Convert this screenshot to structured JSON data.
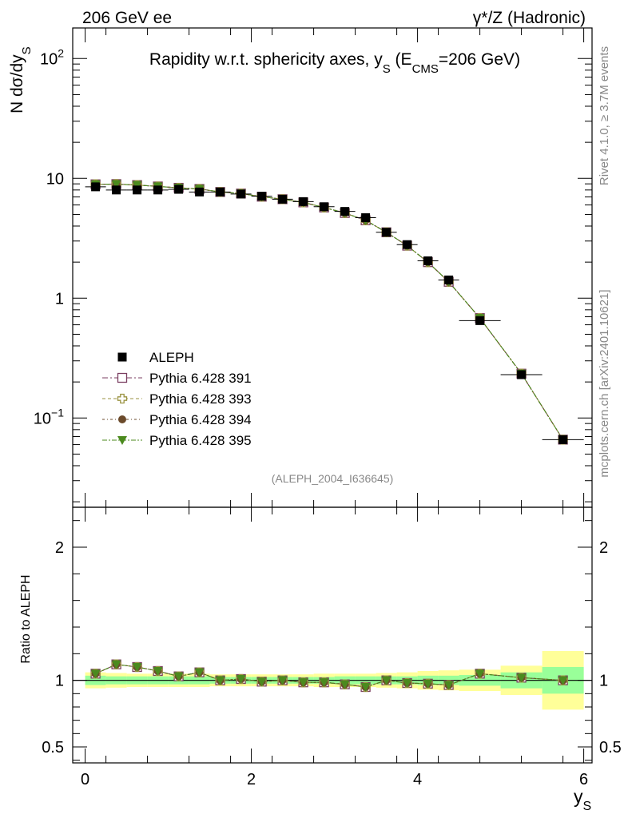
{
  "header": {
    "left": "206 GeV ee",
    "right": "γ*/Z (Hadronic)"
  },
  "side_labels": {
    "rivet": "Rivet 4.1.0, ≥ 3.7M events",
    "mcplots": "mcplots.cern.ch [arXiv:2401.10621]"
  },
  "chart_data": {
    "type": "scatter",
    "title": "Rapidity w.r.t. sphericity axes, y",
    "title_sub": "S",
    "title_tail": " (E",
    "title_sub2": "CMS",
    "title_end": "=206 GeV)",
    "ylabel_main_prefix": "N  dσ/dy",
    "ylabel_main_sub": "S",
    "ylabel_ratio": "Ratio to ALEPH",
    "xlabel": "y",
    "xlabel_sub": "S",
    "analysis_tag": "(ALEPH_2004_I636645)",
    "xlim": [
      -0.15,
      6.1
    ],
    "ylim_main": [
      0.018,
      180
    ],
    "ylim_ratio": [
      0.38,
      2.3
    ],
    "x_ticks": [
      "0",
      "2",
      "4",
      "6"
    ],
    "y_ticks_main": [
      "10",
      "1"
    ],
    "y_ticks_main_exp": [
      {
        "base": "10",
        "exp": "2"
      },
      {
        "base": "10",
        "exp": "−1"
      }
    ],
    "y_ticks_ratio": [
      "2",
      "1",
      "0.5"
    ],
    "bins": [
      [
        0.0,
        0.25
      ],
      [
        0.25,
        0.5
      ],
      [
        0.5,
        0.75
      ],
      [
        0.75,
        1.0
      ],
      [
        1.0,
        1.25
      ],
      [
        1.25,
        1.5
      ],
      [
        1.5,
        1.75
      ],
      [
        1.75,
        2.0
      ],
      [
        2.0,
        2.25
      ],
      [
        2.25,
        2.5
      ],
      [
        2.5,
        2.75
      ],
      [
        2.75,
        3.0
      ],
      [
        3.0,
        3.25
      ],
      [
        3.25,
        3.5
      ],
      [
        3.5,
        3.75
      ],
      [
        3.75,
        4.0
      ],
      [
        4.0,
        4.25
      ],
      [
        4.25,
        4.5
      ],
      [
        4.5,
        5.0
      ],
      [
        5.0,
        5.5
      ],
      [
        5.5,
        6.0
      ]
    ],
    "x": [
      0.125,
      0.375,
      0.625,
      0.875,
      1.125,
      1.375,
      1.625,
      1.875,
      2.125,
      2.375,
      2.625,
      2.875,
      3.125,
      3.375,
      3.625,
      3.875,
      4.125,
      4.375,
      4.75,
      5.25,
      5.75
    ],
    "data": {
      "name": "ALEPH",
      "values": [
        8.5,
        8.0,
        8.0,
        8.0,
        8.1,
        7.7,
        7.7,
        7.4,
        7.1,
        6.7,
        6.4,
        5.8,
        5.3,
        4.7,
        3.55,
        2.8,
        2.05,
        1.42,
        0.65,
        0.23,
        0.066
      ]
    },
    "band_stat_half": [
      0.035,
      0.03,
      0.03,
      0.03,
      0.03,
      0.03,
      0.025,
      0.025,
      0.025,
      0.025,
      0.025,
      0.025,
      0.03,
      0.03,
      0.03,
      0.03,
      0.035,
      0.035,
      0.04,
      0.06,
      0.1
    ],
    "band_tot_half": [
      0.06,
      0.055,
      0.05,
      0.05,
      0.05,
      0.05,
      0.045,
      0.045,
      0.045,
      0.045,
      0.045,
      0.05,
      0.05,
      0.05,
      0.055,
      0.06,
      0.07,
      0.075,
      0.08,
      0.11,
      0.22
    ],
    "series": [
      {
        "name": "Pythia 6.428 391",
        "marker": "open-square",
        "color": "#7b3f61",
        "ratio": [
          1.05,
          1.12,
          1.1,
          1.07,
          1.03,
          1.06,
          1.0,
          1.01,
          0.99,
          1.0,
          0.985,
          0.985,
          0.97,
          0.95,
          1.0,
          0.98,
          0.975,
          0.965,
          1.05,
          1.02,
          1.0
        ]
      },
      {
        "name": "Pythia 6.428 393",
        "marker": "open-cross",
        "color": "#9a9240",
        "ratio": [
          1.05,
          1.12,
          1.1,
          1.07,
          1.03,
          1.06,
          1.0,
          1.01,
          0.99,
          1.0,
          0.985,
          0.985,
          0.97,
          0.95,
          1.0,
          0.98,
          0.975,
          0.965,
          1.05,
          1.02,
          1.0
        ]
      },
      {
        "name": "Pythia 6.428 394",
        "marker": "filled-circle",
        "color": "#6b4a2b",
        "ratio": [
          1.05,
          1.12,
          1.1,
          1.07,
          1.03,
          1.06,
          1.0,
          1.01,
          0.99,
          1.0,
          0.985,
          0.985,
          0.97,
          0.95,
          1.0,
          0.98,
          0.975,
          0.965,
          1.05,
          1.02,
          1.0
        ]
      },
      {
        "name": "Pythia 6.428 395",
        "marker": "filled-triangle-down",
        "color": "#4b8a1e",
        "ratio": [
          1.05,
          1.12,
          1.1,
          1.07,
          1.03,
          1.06,
          1.0,
          1.01,
          0.99,
          1.0,
          0.985,
          0.985,
          0.97,
          0.95,
          1.0,
          0.98,
          0.975,
          0.965,
          1.05,
          1.02,
          1.0
        ]
      }
    ],
    "colors": {
      "band_stat": "#99ff99",
      "band_tot": "#ffff99",
      "data": "#000000"
    }
  }
}
